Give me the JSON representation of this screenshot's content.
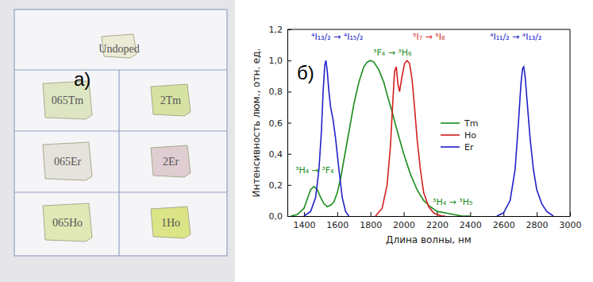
{
  "photo": {
    "panel_label": "а)",
    "title": "Undoped",
    "samples": [
      [
        "065Tm",
        "2Tm"
      ],
      [
        "065Er",
        "2Er"
      ],
      [
        "065Ho",
        "1Ho"
      ]
    ]
  },
  "chart_data": {
    "type": "line",
    "title": "б)",
    "x_label": "Длина волны, нм",
    "y_label": "Интенсивность люм., отн. ед.",
    "xlim": [
      1300,
      3000
    ],
    "xticks": [
      1400,
      1600,
      1800,
      2000,
      2200,
      2400,
      2600,
      2800,
      3000
    ],
    "ylim": [
      0,
      1.2
    ],
    "yticks": [
      {
        "value": 0,
        "label": "0,0"
      },
      {
        "value": 0.2,
        "label": "0,2"
      },
      {
        "value": 0.4,
        "label": "0,4"
      },
      {
        "value": 0.6,
        "label": "0,6"
      },
      {
        "value": 0.8,
        "label": "0,8"
      },
      {
        "value": 1.0,
        "label": "1,0"
      },
      {
        "value": 1.2,
        "label": "1,2"
      }
    ],
    "grid": false,
    "legend": "center",
    "series": [
      {
        "name": "Tm",
        "color": "#1a8c1a",
        "x": [
          1320,
          1360,
          1400,
          1420,
          1440,
          1460,
          1480,
          1500,
          1520,
          1540,
          1560,
          1580,
          1600,
          1620,
          1650,
          1680,
          1700,
          1730,
          1760,
          1780,
          1800,
          1820,
          1850,
          1880,
          1900,
          1930,
          1960,
          2000,
          2040,
          2080,
          2120,
          2160,
          2200,
          2250,
          2300,
          2350,
          2400
        ],
        "values": [
          0.0,
          0.01,
          0.05,
          0.11,
          0.17,
          0.19,
          0.17,
          0.12,
          0.08,
          0.06,
          0.07,
          0.09,
          0.15,
          0.24,
          0.42,
          0.6,
          0.72,
          0.86,
          0.96,
          0.99,
          1.0,
          0.99,
          0.94,
          0.86,
          0.78,
          0.67,
          0.55,
          0.4,
          0.27,
          0.17,
          0.1,
          0.06,
          0.03,
          0.02,
          0.01,
          0.0,
          0.0
        ]
      },
      {
        "name": "Ho",
        "color": "#d41f1f",
        "x": [
          1830,
          1870,
          1900,
          1920,
          1935,
          1945,
          1955,
          1965,
          1975,
          1990,
          2005,
          2020,
          2035,
          2050,
          2065,
          2080,
          2100,
          2120,
          2150,
          2180,
          2200,
          2230,
          2250
        ],
        "values": [
          0.0,
          0.05,
          0.2,
          0.45,
          0.75,
          0.93,
          0.96,
          0.85,
          0.8,
          0.9,
          0.98,
          1.0,
          0.98,
          0.88,
          0.7,
          0.5,
          0.3,
          0.15,
          0.06,
          0.02,
          0.01,
          0.0,
          0.0
        ]
      },
      {
        "name": "Er",
        "color": "#2020c8",
        "x": [
          1400,
          1440,
          1470,
          1490,
          1505,
          1515,
          1525,
          1532,
          1540,
          1550,
          1560,
          1575,
          1590,
          1610,
          1630,
          1650,
          1670,
          2100,
          2560,
          2600,
          2640,
          2670,
          2690,
          2705,
          2715,
          2722,
          2730,
          2745,
          2760,
          2780,
          2800,
          2830,
          2860,
          2900
        ],
        "values": [
          0.0,
          0.03,
          0.12,
          0.3,
          0.55,
          0.8,
          0.97,
          1.0,
          0.93,
          0.8,
          0.7,
          0.62,
          0.5,
          0.3,
          0.12,
          0.03,
          0.0,
          null,
          0.0,
          0.02,
          0.1,
          0.3,
          0.6,
          0.85,
          0.95,
          0.96,
          0.9,
          0.7,
          0.5,
          0.3,
          0.17,
          0.08,
          0.03,
          0.0
        ]
      }
    ],
    "annotations": [
      {
        "text": "⁴I₁₃/₂ → ⁴I₁₅/₂",
        "color": "#2020c8"
      },
      {
        "text": "³F₄ → ³H₆",
        "color": "#1a8c1a"
      },
      {
        "text": "⁵I₇ → ⁵I₈",
        "color": "#d41f1f"
      },
      {
        "text": "³H₄ → ³F₄",
        "color": "#1a8c1a"
      },
      {
        "text": "³H₄ → ³H₅",
        "color": "#1a8c1a"
      },
      {
        "text": "⁴I₁₁/₂ → ⁴I₁₃/₂",
        "color": "#2020c8"
      }
    ]
  }
}
